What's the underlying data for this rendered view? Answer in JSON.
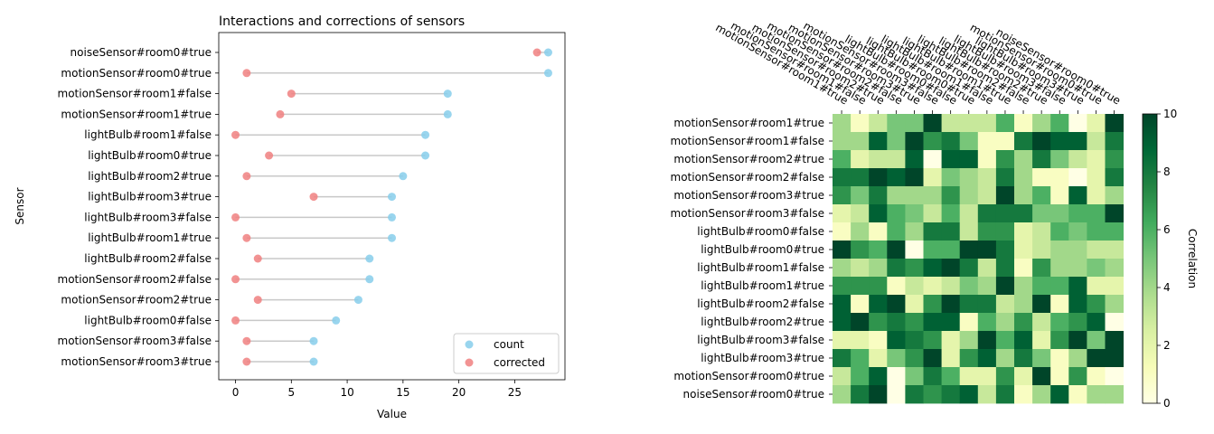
{
  "chart_data": [
    {
      "type": "dumbbell",
      "title": "Interactions and corrections of sensors",
      "xlabel": "Value",
      "ylabel": "Sensor",
      "xlim": [
        -1.5,
        29.5
      ],
      "xticks": [
        0,
        5,
        10,
        15,
        20,
        25
      ],
      "legend_position": "bottom-right",
      "sensors": [
        "noiseSensor#room0#true",
        "motionSensor#room0#true",
        "motionSensor#room1#false",
        "motionSensor#room1#true",
        "lightBulb#room1#false",
        "lightBulb#room0#true",
        "lightBulb#room2#true",
        "lightBulb#room3#true",
        "lightBulb#room3#false",
        "lightBulb#room1#true",
        "lightBulb#room2#false",
        "motionSensor#room2#false",
        "motionSensor#room2#true",
        "lightBulb#room0#false",
        "motionSensor#room3#false",
        "motionSensor#room3#true"
      ],
      "series": [
        {
          "name": "count",
          "color": "#87ceeb",
          "values": [
            28,
            28,
            19,
            19,
            17,
            17,
            15,
            14,
            14,
            14,
            12,
            12,
            11,
            9,
            7,
            7
          ]
        },
        {
          "name": "corrected",
          "color": "#f08080",
          "values": [
            27,
            1,
            5,
            4,
            0,
            3,
            1,
            7,
            0,
            1,
            2,
            0,
            2,
            0,
            1,
            1
          ]
        }
      ]
    },
    {
      "type": "heatmap",
      "colorbar_label": "Correlation",
      "vmin": 0,
      "vmax": 10,
      "colorbar_ticks": [
        0,
        2,
        4,
        6,
        8,
        10
      ],
      "colormap": "YlGn",
      "rows": [
        "motionSensor#room1#true",
        "motionSensor#room1#false",
        "motionSensor#room2#true",
        "motionSensor#room2#false",
        "motionSensor#room3#true",
        "motionSensor#room3#false",
        "lightBulb#room0#false",
        "lightBulb#room0#true",
        "lightBulb#room1#false",
        "lightBulb#room1#true",
        "lightBulb#room2#false",
        "lightBulb#room2#true",
        "lightBulb#room3#false",
        "lightBulb#room3#true",
        "motionSensor#room0#true",
        "noiseSensor#room0#true"
      ],
      "columns": [
        "motionSensor#room1#true",
        "motionSensor#room1#false",
        "motionSensor#room2#true",
        "motionSensor#room2#false",
        "motionSensor#room3#true",
        "motionSensor#room3#false",
        "lightBulb#room0#false",
        "lightBulb#room0#true",
        "lightBulb#room1#false",
        "lightBulb#room1#true",
        "lightBulb#room2#false",
        "lightBulb#room2#true",
        "lightBulb#room3#false",
        "lightBulb#room3#true",
        "motionSensor#room0#true",
        "noiseSensor#room0#true"
      ],
      "values": [
        [
          4,
          1,
          3,
          5,
          5,
          10,
          3,
          3,
          3,
          6,
          1,
          4,
          6,
          0,
          2,
          10
        ],
        [
          4,
          4,
          9,
          5,
          10,
          7,
          8,
          5,
          1,
          1,
          8,
          10,
          9,
          9,
          3,
          8
        ],
        [
          6,
          2,
          3,
          3,
          9,
          0,
          9,
          9,
          1,
          7,
          4,
          8,
          5,
          3,
          2,
          7
        ],
        [
          8,
          8,
          10,
          9,
          10,
          2,
          5,
          4,
          3,
          8,
          4,
          1,
          1,
          0,
          2,
          8
        ],
        [
          7,
          5,
          8,
          4,
          4,
          4,
          7,
          4,
          3,
          10,
          4,
          6,
          1,
          9,
          2,
          4
        ],
        [
          2,
          3,
          9,
          6,
          5,
          3,
          6,
          3,
          8,
          8,
          8,
          5,
          5,
          6,
          6,
          10
        ],
        [
          1,
          4,
          1,
          6,
          4,
          8,
          8,
          3,
          7,
          7,
          2,
          3,
          6,
          5,
          6,
          6
        ],
        [
          10,
          7,
          6,
          10,
          0,
          6,
          6,
          10,
          10,
          8,
          2,
          3,
          4,
          4,
          3,
          3
        ],
        [
          4,
          3,
          4,
          8,
          7,
          9,
          10,
          8,
          3,
          8,
          1,
          7,
          4,
          4,
          5,
          4
        ],
        [
          7,
          7,
          7,
          1,
          3,
          2,
          3,
          5,
          4,
          10,
          4,
          6,
          6,
          9,
          2,
          2
        ],
        [
          9,
          1,
          9,
          10,
          2,
          7,
          10,
          8,
          8,
          3,
          4,
          10,
          1,
          9,
          7,
          4
        ],
        [
          9,
          10,
          7,
          8,
          7,
          9,
          9,
          1,
          6,
          4,
          7,
          3,
          6,
          7,
          9,
          0
        ],
        [
          2,
          2,
          1,
          9,
          8,
          7,
          2,
          4,
          10,
          6,
          9,
          2,
          7,
          10,
          5,
          10
        ],
        [
          8,
          6,
          2,
          5,
          7,
          10,
          2,
          7,
          9,
          4,
          8,
          5,
          1,
          4,
          10,
          10
        ],
        [
          3,
          6,
          9,
          0,
          5,
          8,
          6,
          2,
          2,
          7,
          2,
          10,
          1,
          7,
          1,
          0
        ],
        [
          4,
          8,
          10,
          0,
          8,
          7,
          8,
          9,
          3,
          8,
          1,
          4,
          9,
          1,
          4,
          4
        ]
      ]
    }
  ]
}
